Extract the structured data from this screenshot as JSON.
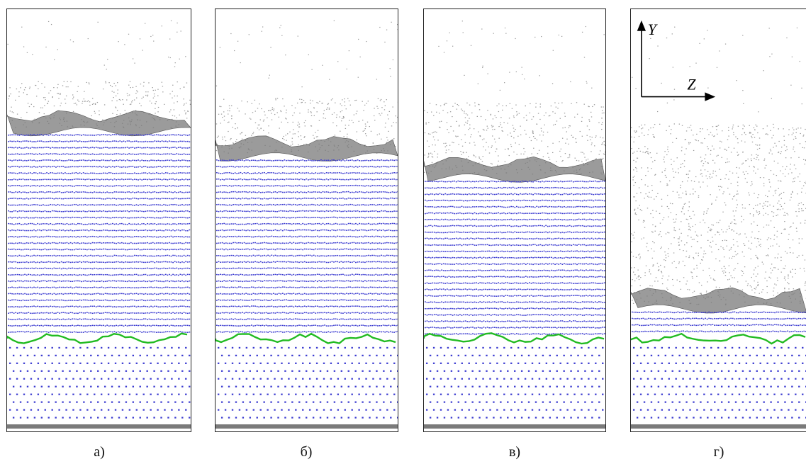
{
  "panels": [
    {
      "caption": "а)",
      "liquid_top_frac": 0.17,
      "interface_frac": 0.72,
      "ordered_frac": 0.0
    },
    {
      "caption": "б)",
      "liquid_top_frac": 0.21,
      "interface_frac": 0.66,
      "ordered_frac": 0.3
    },
    {
      "caption": "в)",
      "liquid_top_frac": 0.22,
      "interface_frac": 0.61,
      "ordered_frac": 0.5
    },
    {
      "caption": "г)",
      "liquid_top_frac": 0.27,
      "interface_frac": 0.3,
      "ordered_frac": 0.9
    }
  ],
  "axes": {
    "y_label": "Y",
    "z_label": "Z"
  },
  "colors": {
    "liquid_dots": "#9a9a9a",
    "crystal_dots": "#3a3ad0",
    "front_line": "#22bb22",
    "surface": "#7a7a7a",
    "border": "#222222"
  }
}
